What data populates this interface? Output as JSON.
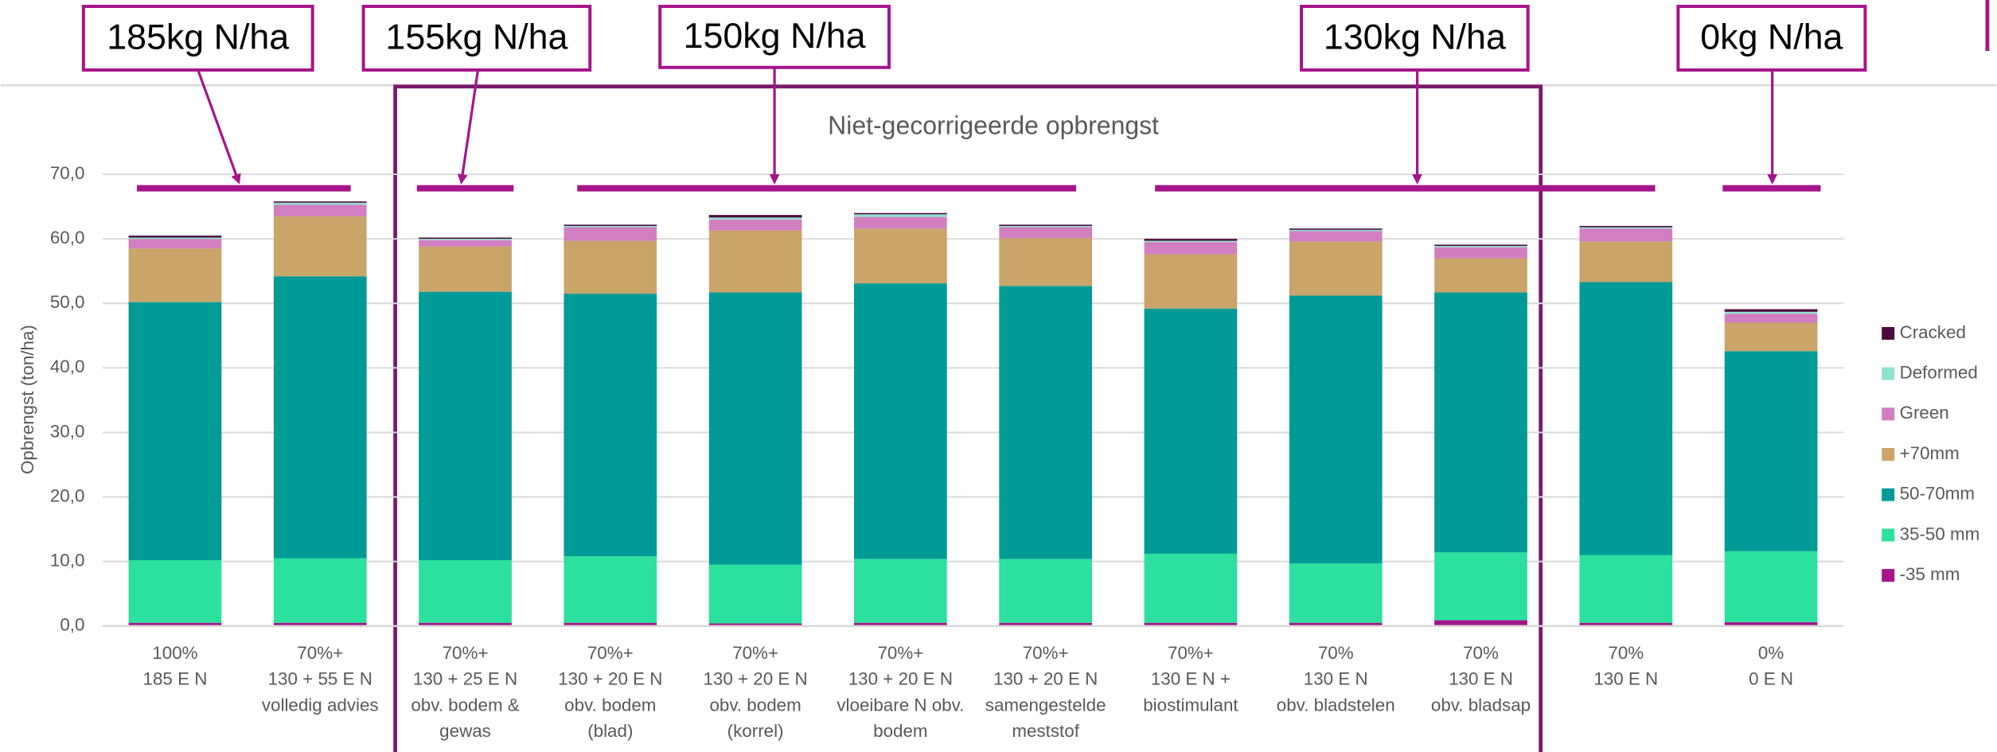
{
  "chart_data": {
    "type": "stacked_bar",
    "title": "Niet-gecorrigeerde opbrengst",
    "y_label": "Opbrengst (ton/ha)",
    "annotations": [
      "185kg N/ha",
      "155kg N/ha",
      "150kg N/ha",
      "130kg N/ha",
      "0kg N/ha"
    ],
    "categories": [
      [
        "100%",
        "185 E N"
      ],
      [
        "70%+",
        "130 + 55 E N",
        "volledig advies"
      ],
      [
        "70%+",
        "130 + 25 E N",
        "obv. bodem &",
        "gewas"
      ],
      [
        "70%+",
        "130 + 20 E N",
        "obv. bodem",
        "(blad)"
      ],
      [
        "70%+",
        "130 + 20 E N",
        "obv. bodem",
        "(korrel)"
      ],
      [
        "70%+",
        "130 + 20 E N",
        "vloeibare N obv.",
        "bodem"
      ],
      [
        "70%+",
        "130 + 20 E N",
        "samengestelde",
        "meststof"
      ],
      [
        "70%+",
        "130 E N +",
        "biostimulant"
      ],
      [
        "70%",
        "130 E N",
        "obv. bladstelen"
      ],
      [
        "70%",
        "130 E N",
        "obv. bladsap"
      ],
      [
        "70%",
        "130 E N"
      ],
      [
        "0%",
        "0 E N"
      ]
    ],
    "series": [
      {
        "name": "-35 mm",
        "color": "#a5148a",
        "values": [
          0.5,
          0.5,
          0.5,
          0.5,
          0.4,
          0.5,
          0.5,
          0.5,
          0.5,
          0.9,
          0.5,
          0.6
        ]
      },
      {
        "name": "35-50 mm",
        "color": "#2ce0a0",
        "values": [
          9.7,
          10,
          9.7,
          10.3,
          9.1,
          9.9,
          9.9,
          10.7,
          9.2,
          10.5,
          10.5,
          11
        ]
      },
      {
        "name": "50-70mm",
        "color": "#009b96",
        "values": [
          40,
          43.7,
          41.6,
          40.7,
          42.2,
          42.7,
          42.3,
          38,
          41.5,
          40.3,
          42.3,
          31
        ]
      },
      {
        "name": "+70mm",
        "color": "#c9a56a",
        "values": [
          8.3,
          9.3,
          7,
          8.2,
          9.6,
          8.5,
          7.4,
          8.4,
          8.4,
          5.3,
          6.3,
          4.4
        ]
      },
      {
        "name": "Green",
        "color": "#d27fc1",
        "values": [
          1.5,
          1.8,
          1,
          2.1,
          1.7,
          1.8,
          1.7,
          1.9,
          1.6,
          1.7,
          2,
          1.4
        ]
      },
      {
        "name": "Deformed",
        "color": "#8fe3d0",
        "values": [
          0.2,
          0.3,
          0.2,
          0.2,
          0.3,
          0.4,
          0.2,
          0.2,
          0.2,
          0.2,
          0.2,
          0.3
        ]
      },
      {
        "name": "Cracked",
        "color": "#4d0b3d",
        "values": [
          0.3,
          0.2,
          0.2,
          0.2,
          0.4,
          0.2,
          0.2,
          0.3,
          0.2,
          0.2,
          0.2,
          0.4
        ]
      }
    ],
    "ylim": [
      0,
      70
    ],
    "yticks": [
      {
        "value": 0,
        "label": "0,0"
      },
      {
        "value": 10,
        "label": "10,0"
      },
      {
        "value": 20,
        "label": "20,0"
      },
      {
        "value": 30,
        "label": "30,0"
      },
      {
        "value": 40,
        "label": "40,0"
      },
      {
        "value": 50,
        "label": "50,0"
      },
      {
        "value": 60,
        "label": "60,0"
      },
      {
        "value": 70,
        "label": "70,0"
      }
    ],
    "grid": true,
    "legend": "right"
  }
}
